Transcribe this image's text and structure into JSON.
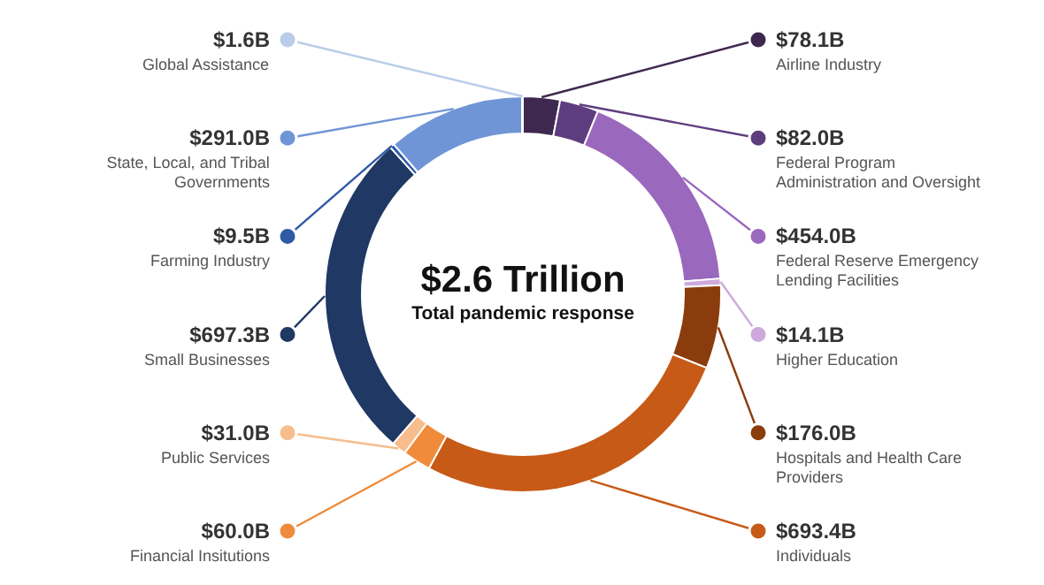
{
  "chart_data": {
    "type": "donut",
    "title": "$2.6 Trillion",
    "subtitle": "Total pandemic response",
    "categories": [
      "Airline Industry",
      "Federal Program Administration and Oversight",
      "Federal Reserve Emergency Lending Facilities",
      "Higher Education",
      "Hospitals and Health Care Providers",
      "Individuals",
      "Financial Insitutions",
      "Public Services",
      "Small Businesses",
      "Farming Industry",
      "State, Local, and Tribal Governments",
      "Global Assistance"
    ],
    "values": [
      78.1,
      82.0,
      454.0,
      14.1,
      176.0,
      693.4,
      60.0,
      31.0,
      697.3,
      9.5,
      291.0,
      1.6
    ],
    "value_labels": [
      "$78.1B",
      "$82.0B",
      "$454.0B",
      "$14.1B",
      "$176.0B",
      "$693.4B",
      "$60.0B",
      "$31.0B",
      "$697.3B",
      "$9.5B",
      "$291.0B",
      "$1.6B"
    ],
    "colors": [
      "#3f2850",
      "#5e3d7f",
      "#9a68bd",
      "#cfa9dc",
      "#8a3c0c",
      "#c75a17",
      "#ef8b3a",
      "#f7bd8c",
      "#1f3864",
      "#2f5aa6",
      "#6f95d6",
      "#b9cde9"
    ]
  }
}
